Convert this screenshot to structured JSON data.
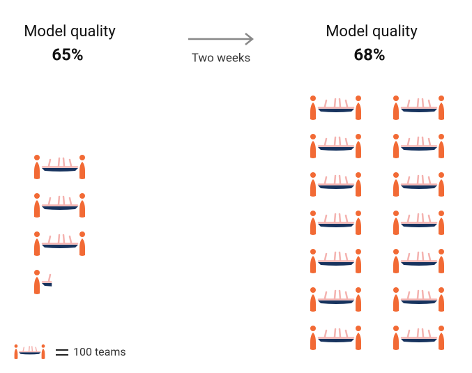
{
  "chart_data": {
    "type": "pictogram",
    "annotation": "Two weeks",
    "unit": {
      "value": 100,
      "label": "100 teams"
    },
    "panels": [
      {
        "title": "Model quality",
        "quality": "65%",
        "teams": 335
      },
      {
        "title": "Model quality",
        "quality": "68%",
        "teams": 1400
      }
    ]
  }
}
